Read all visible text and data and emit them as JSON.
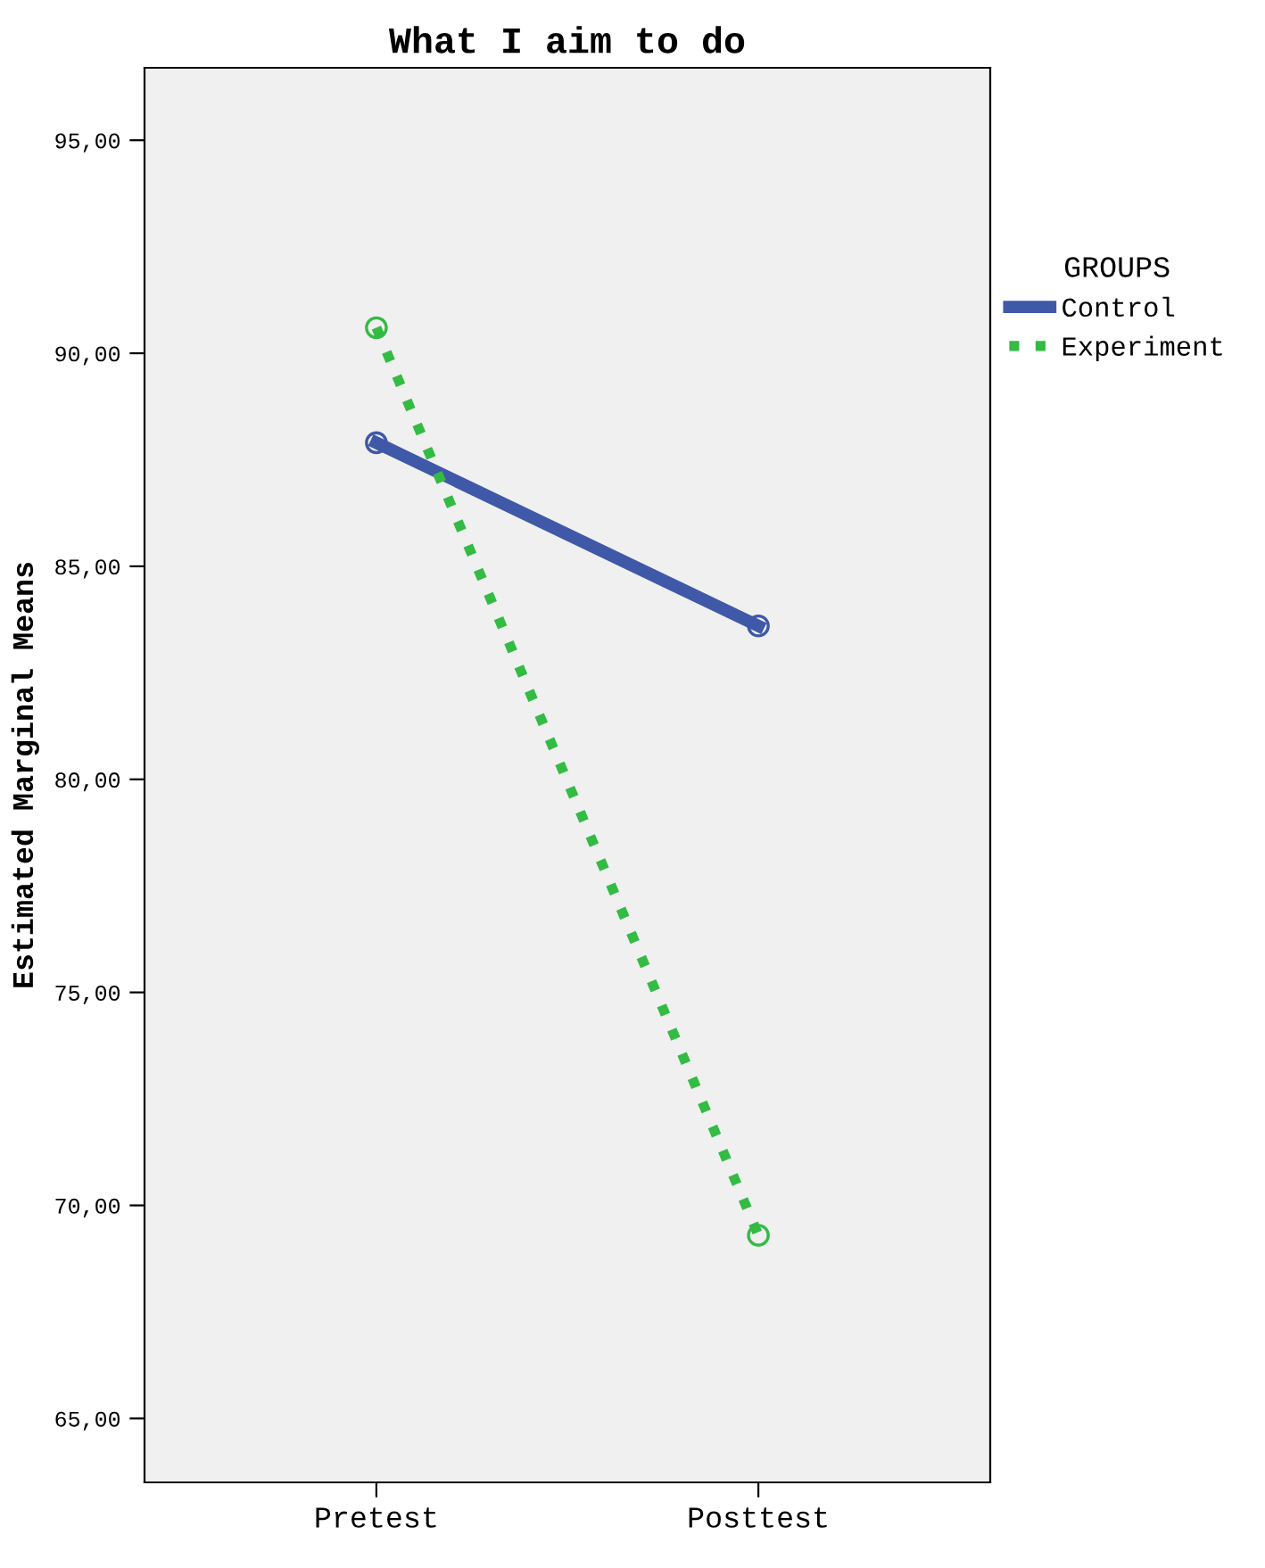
{
  "chart_data": {
    "type": "line",
    "title": "What I aim to do",
    "ylabel": "Estimated Marginal Means",
    "legend_title": "GROUPS",
    "categories": [
      "Pretest",
      "Posttest"
    ],
    "series": [
      {
        "name": "Control",
        "color": "#3f58a8",
        "values": [
          87.9,
          83.6
        ],
        "line_style": "solid"
      },
      {
        "name": "Experiment",
        "color": "#33bb44",
        "values": [
          90.6,
          69.3
        ],
        "line_style": "dotted"
      }
    ],
    "ylim": [
      63.5,
      96.7
    ],
    "yticks": [
      {
        "value": 65,
        "label": "65,00"
      },
      {
        "value": 70,
        "label": "70,00"
      },
      {
        "value": 75,
        "label": "75,00"
      },
      {
        "value": 80,
        "label": "80,00"
      },
      {
        "value": 85,
        "label": "85,00"
      },
      {
        "value": 90,
        "label": "90,00"
      },
      {
        "value": 95,
        "label": "95,00"
      }
    ],
    "marker": "circle",
    "grid": false,
    "legend": "right"
  }
}
